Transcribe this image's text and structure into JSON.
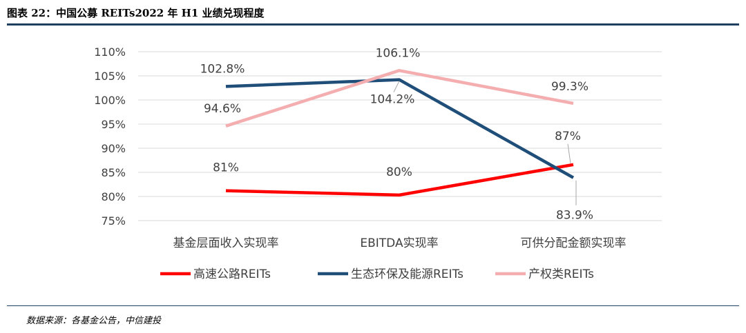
{
  "header": {
    "title": "图表 22：中国公募 REITs2022 年 H1 业绩兑现程度"
  },
  "footer": {
    "source": "数据来源：各基金公告，中信建投"
  },
  "colors": {
    "rule": "#1f3f60",
    "grid": "#d9d9d9"
  },
  "chart_data": {
    "type": "line",
    "title": "",
    "xlabel": "",
    "ylabel": "",
    "categories": [
      "基金层面收入实现率",
      "EBITDA实现率",
      "可供分配金额实现率"
    ],
    "ylim": [
      75,
      110
    ],
    "yticks": [
      "75%",
      "80%",
      "85%",
      "90%",
      "95%",
      "100%",
      "105%",
      "110%"
    ],
    "grid": true,
    "legend_position": "bottom",
    "series": [
      {
        "name": "高速公路REITs",
        "color": "#ff0000",
        "values": [
          81.2,
          80.3,
          86.6
        ],
        "labels": [
          "81%",
          "80%",
          "87%"
        ]
      },
      {
        "name": "生态环保及能源REITs",
        "color": "#1f4e79",
        "values": [
          102.8,
          104.2,
          83.9
        ],
        "labels": [
          "102.8%",
          "104.2%",
          "83.9%"
        ]
      },
      {
        "name": "产权类REITs",
        "color": "#f4aeb0",
        "values": [
          94.6,
          106.1,
          99.3
        ],
        "labels": [
          "94.6%",
          "106.1%",
          "99.3%"
        ]
      }
    ]
  }
}
